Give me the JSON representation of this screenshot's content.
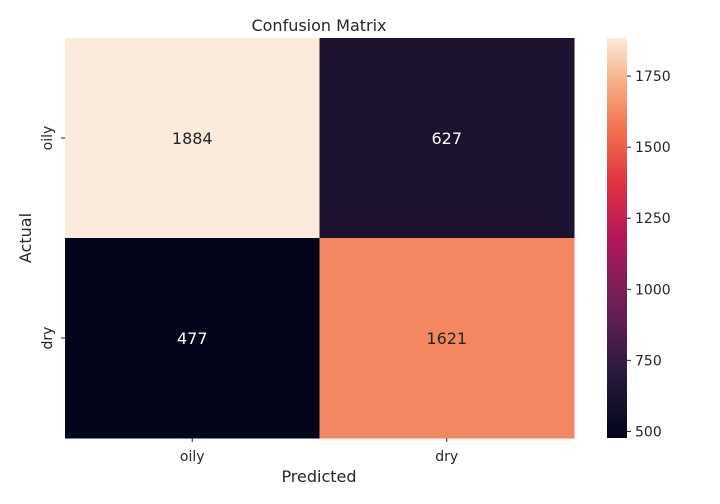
{
  "chart_data": {
    "type": "heatmap",
    "title": "Confusion Matrix",
    "xlabel": "Predicted",
    "ylabel": "Actual",
    "x_categories": [
      "oily",
      "dry"
    ],
    "y_categories": [
      "oily",
      "dry"
    ],
    "values": [
      [
        1884,
        627
      ],
      [
        477,
        1621
      ]
    ],
    "colorbar": {
      "min": 477,
      "max": 1884,
      "ticks": [
        "500",
        "750",
        "1000",
        "1250",
        "1500",
        "1750"
      ],
      "tick_values": [
        500,
        750,
        1000,
        1250,
        1500,
        1750
      ],
      "colormap": "rocket"
    }
  }
}
